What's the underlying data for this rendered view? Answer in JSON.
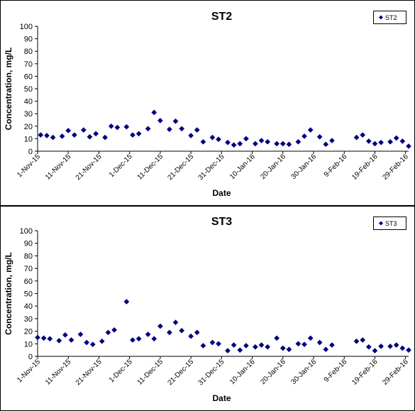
{
  "chart_data": [
    {
      "type": "scatter",
      "title": "ST2",
      "xlabel": "Date",
      "ylabel": "Concentration, mg/L",
      "ylim": [
        0,
        100
      ],
      "yticks": [
        "0",
        "10",
        "20",
        "30",
        "40",
        "50",
        "60",
        "70",
        "80",
        "90",
        "100"
      ],
      "xlim": [
        "2015-11-01",
        "2016-03-01"
      ],
      "xticks": [
        {
          "label": "1-Nov-15",
          "date": "2015-11-01"
        },
        {
          "label": "11-Nov-15",
          "date": "2015-11-11"
        },
        {
          "label": "21-Nov-15",
          "date": "2015-11-21"
        },
        {
          "label": "1-Dec-15",
          "date": "2015-12-01"
        },
        {
          "label": "11-Dec-15",
          "date": "2015-12-11"
        },
        {
          "label": "21-Dec-15",
          "date": "2015-12-21"
        },
        {
          "label": "31-Dec-15",
          "date": "2015-12-31"
        },
        {
          "label": "10-Jan-16",
          "date": "2016-01-10"
        },
        {
          "label": "20-Jan-16",
          "date": "2016-01-20"
        },
        {
          "label": "30-Jan-16",
          "date": "2016-01-30"
        },
        {
          "label": "9-Feb-16",
          "date": "2016-02-09"
        },
        {
          "label": "19-Feb-16",
          "date": "2016-02-19"
        },
        {
          "label": "29-Feb-16",
          "date": "2016-02-29"
        }
      ],
      "grid": false,
      "legend_position": "top-right",
      "series": [
        {
          "name": "ST2",
          "color": "#000080",
          "points": [
            [
              "2015-11-02",
              13
            ],
            [
              "2015-11-04",
              12.5
            ],
            [
              "2015-11-06",
              11
            ],
            [
              "2015-11-09",
              12
            ],
            [
              "2015-11-11",
              16.5
            ],
            [
              "2015-11-13",
              13
            ],
            [
              "2015-11-16",
              17
            ],
            [
              "2015-11-18",
              11.5
            ],
            [
              "2015-11-20",
              14
            ],
            [
              "2015-11-23",
              11
            ],
            [
              "2015-11-25",
              20
            ],
            [
              "2015-11-27",
              19
            ],
            [
              "2015-11-30",
              19.5
            ],
            [
              "2015-12-02",
              13
            ],
            [
              "2015-12-04",
              14
            ],
            [
              "2015-12-07",
              18
            ],
            [
              "2015-12-09",
              31
            ],
            [
              "2015-12-11",
              24.5
            ],
            [
              "2015-12-14",
              17.5
            ],
            [
              "2015-12-16",
              24
            ],
            [
              "2015-12-18",
              18
            ],
            [
              "2015-12-21",
              12.5
            ],
            [
              "2015-12-23",
              17
            ],
            [
              "2015-12-25",
              7.5
            ],
            [
              "2015-12-28",
              11
            ],
            [
              "2015-12-30",
              9.5
            ],
            [
              "2016-01-02",
              7
            ],
            [
              "2016-01-04",
              5
            ],
            [
              "2016-01-06",
              6
            ],
            [
              "2016-01-08",
              10
            ],
            [
              "2016-01-11",
              6
            ],
            [
              "2016-01-13",
              8.5
            ],
            [
              "2016-01-15",
              7.5
            ],
            [
              "2016-01-18",
              6
            ],
            [
              "2016-01-20",
              6
            ],
            [
              "2016-01-22",
              5.5
            ],
            [
              "2016-01-25",
              7.5
            ],
            [
              "2016-01-27",
              12
            ],
            [
              "2016-01-29",
              17
            ],
            [
              "2016-02-01",
              11.5
            ],
            [
              "2016-02-03",
              5.5
            ],
            [
              "2016-02-05",
              8.5
            ],
            [
              "2016-02-13",
              11
            ],
            [
              "2016-02-15",
              13
            ],
            [
              "2016-02-17",
              8
            ],
            [
              "2016-02-19",
              6
            ],
            [
              "2016-02-21",
              7
            ],
            [
              "2016-02-24",
              7.5
            ],
            [
              "2016-02-26",
              10.5
            ],
            [
              "2016-02-28",
              8
            ],
            [
              "2016-03-01",
              4
            ]
          ]
        }
      ]
    },
    {
      "type": "scatter",
      "title": "ST3",
      "xlabel": "Date",
      "ylabel": "Concentration, mg/L",
      "ylim": [
        0,
        100
      ],
      "yticks": [
        "0",
        "10",
        "20",
        "30",
        "40",
        "50",
        "60",
        "70",
        "80",
        "90",
        "100"
      ],
      "xlim": [
        "2015-11-01",
        "2016-03-01"
      ],
      "xticks": [
        {
          "label": "1-Nov-15",
          "date": "2015-11-01"
        },
        {
          "label": "11-Nov-15",
          "date": "2015-11-11"
        },
        {
          "label": "21-Nov-15",
          "date": "2015-11-21"
        },
        {
          "label": "1-Dec-15",
          "date": "2015-12-01"
        },
        {
          "label": "11-Dec-15",
          "date": "2015-12-11"
        },
        {
          "label": "21-Dec-15",
          "date": "2015-12-21"
        },
        {
          "label": "31-Dec-15",
          "date": "2015-12-31"
        },
        {
          "label": "10-Jan-16",
          "date": "2016-01-10"
        },
        {
          "label": "20-Jan-16",
          "date": "2016-01-20"
        },
        {
          "label": "30-Jan-16",
          "date": "2016-01-30"
        },
        {
          "label": "9-Feb-16",
          "date": "2016-02-09"
        },
        {
          "label": "19-Feb-16",
          "date": "2016-02-19"
        },
        {
          "label": "29-Feb-16",
          "date": "2016-02-29"
        }
      ],
      "grid": false,
      "legend_position": "top-right",
      "series": [
        {
          "name": "ST3",
          "color": "#000080",
          "points": [
            [
              "2015-11-01",
              15
            ],
            [
              "2015-11-03",
              14.5
            ],
            [
              "2015-11-05",
              14
            ],
            [
              "2015-11-08",
              12.5
            ],
            [
              "2015-11-10",
              17
            ],
            [
              "2015-11-12",
              13
            ],
            [
              "2015-11-15",
              17.5
            ],
            [
              "2015-11-17",
              11
            ],
            [
              "2015-11-19",
              9.5
            ],
            [
              "2015-11-22",
              12
            ],
            [
              "2015-11-24",
              19
            ],
            [
              "2015-11-26",
              21
            ],
            [
              "2015-11-30",
              43.5
            ],
            [
              "2015-12-02",
              13
            ],
            [
              "2015-12-04",
              14
            ],
            [
              "2015-12-07",
              17.5
            ],
            [
              "2015-12-09",
              14
            ],
            [
              "2015-12-11",
              24
            ],
            [
              "2015-12-14",
              19
            ],
            [
              "2015-12-16",
              27
            ],
            [
              "2015-12-18",
              20.5
            ],
            [
              "2015-12-21",
              16
            ],
            [
              "2015-12-23",
              19
            ],
            [
              "2015-12-25",
              8.5
            ],
            [
              "2015-12-28",
              11
            ],
            [
              "2015-12-30",
              10
            ],
            [
              "2016-01-02",
              4.5
            ],
            [
              "2016-01-04",
              9
            ],
            [
              "2016-01-06",
              5
            ],
            [
              "2016-01-08",
              8.5
            ],
            [
              "2016-01-11",
              7.5
            ],
            [
              "2016-01-13",
              9
            ],
            [
              "2016-01-15",
              7.5
            ],
            [
              "2016-01-18",
              14.5
            ],
            [
              "2016-01-20",
              6.5
            ],
            [
              "2016-01-22",
              5.5
            ],
            [
              "2016-01-25",
              10
            ],
            [
              "2016-01-27",
              9.5
            ],
            [
              "2016-01-29",
              14.5
            ],
            [
              "2016-02-01",
              11
            ],
            [
              "2016-02-03",
              5.5
            ],
            [
              "2016-02-05",
              9
            ],
            [
              "2016-02-13",
              12
            ],
            [
              "2016-02-15",
              13
            ],
            [
              "2016-02-17",
              7.5
            ],
            [
              "2016-02-19",
              4.5
            ],
            [
              "2016-02-21",
              8
            ],
            [
              "2016-02-24",
              8
            ],
            [
              "2016-02-26",
              9
            ],
            [
              "2016-02-28",
              6.5
            ],
            [
              "2016-03-01",
              5
            ]
          ]
        }
      ]
    }
  ]
}
